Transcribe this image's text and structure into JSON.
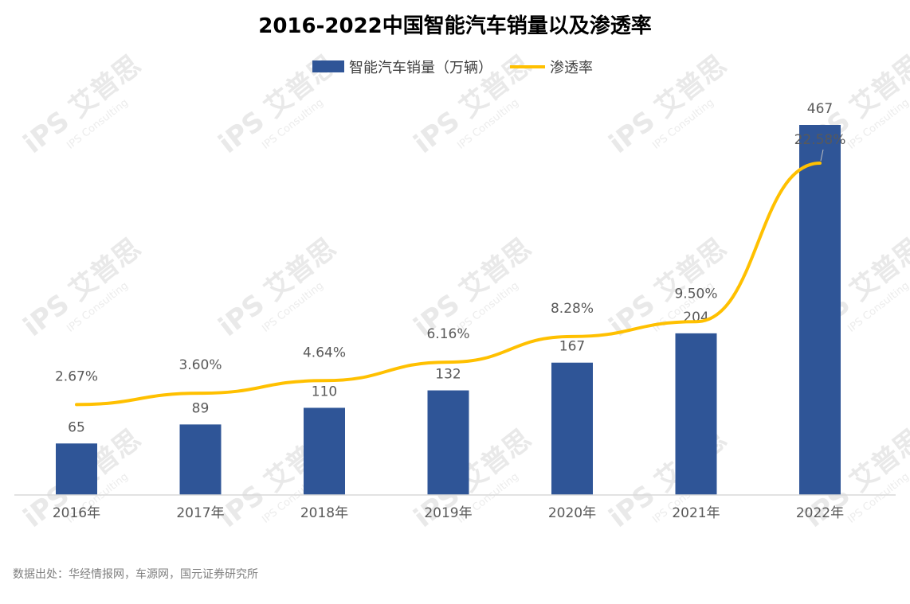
{
  "chart_data": {
    "type": "bar",
    "title": "2016-2022中国智能汽车销量以及渗透率",
    "categories": [
      "2016年",
      "2017年",
      "2018年",
      "2019年",
      "2020年",
      "2021年",
      "2022年"
    ],
    "series": [
      {
        "name": "智能汽车销量（万辆）",
        "type": "bar",
        "values": [
          65,
          89,
          110,
          132,
          167,
          204,
          467
        ],
        "labels": [
          "65",
          "89",
          "110",
          "132",
          "167",
          "204",
          "467"
        ],
        "color": "#2F5597"
      },
      {
        "name": "渗透率",
        "type": "line",
        "values": [
          2.67,
          3.6,
          4.64,
          6.16,
          8.28,
          9.5,
          22.58
        ],
        "labels": [
          "2.67%",
          "3.60%",
          "4.64%",
          "6.16%",
          "8.28%",
          "9.50%",
          "22.58%"
        ],
        "color": "#FFC000"
      }
    ],
    "legend_position": "top-center",
    "grid": false,
    "source": "数据出处：华经情报网，车源网，国元证券研究所"
  },
  "watermark": {
    "brand": "iPS 艾普思",
    "sub": "IPS Consulting"
  }
}
